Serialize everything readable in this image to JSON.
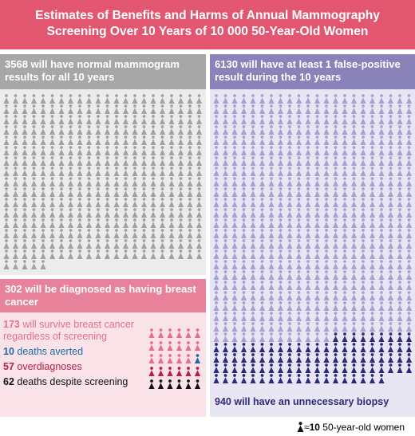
{
  "title": "Estimates of Benefits and Harms of Annual Mammography Screening Over 10 Years of 10 000 50-Year-Old Women",
  "normal": {
    "value": 3568,
    "text": "will have normal mammogram results for all 10 years",
    "color": "#a2a2a4"
  },
  "false_positive": {
    "value": 6130,
    "text": "will have at least 1 false-positive result during the 10 years",
    "color": "#a8a2d0"
  },
  "biopsy": {
    "value": 940,
    "text": "will have an unnecessary biopsy",
    "color": "#2d2a7a"
  },
  "diagnosed": {
    "value": 302,
    "text": "will be diagnosed as having breast cancer"
  },
  "outcomes": [
    {
      "value": 173,
      "text": "will survive breast cancer regardless of screening",
      "color": "#e3708c"
    },
    {
      "value": 10,
      "text": "deaths averted",
      "color": "#1f6aa5"
    },
    {
      "value": 57,
      "text": "overdiagnoses",
      "color": "#b71f45"
    },
    {
      "value": 62,
      "text": "deaths despite screening",
      "color": "#111111"
    }
  ],
  "legend": {
    "approx": "≈",
    "value": 10,
    "text": "50-year-old women"
  }
}
